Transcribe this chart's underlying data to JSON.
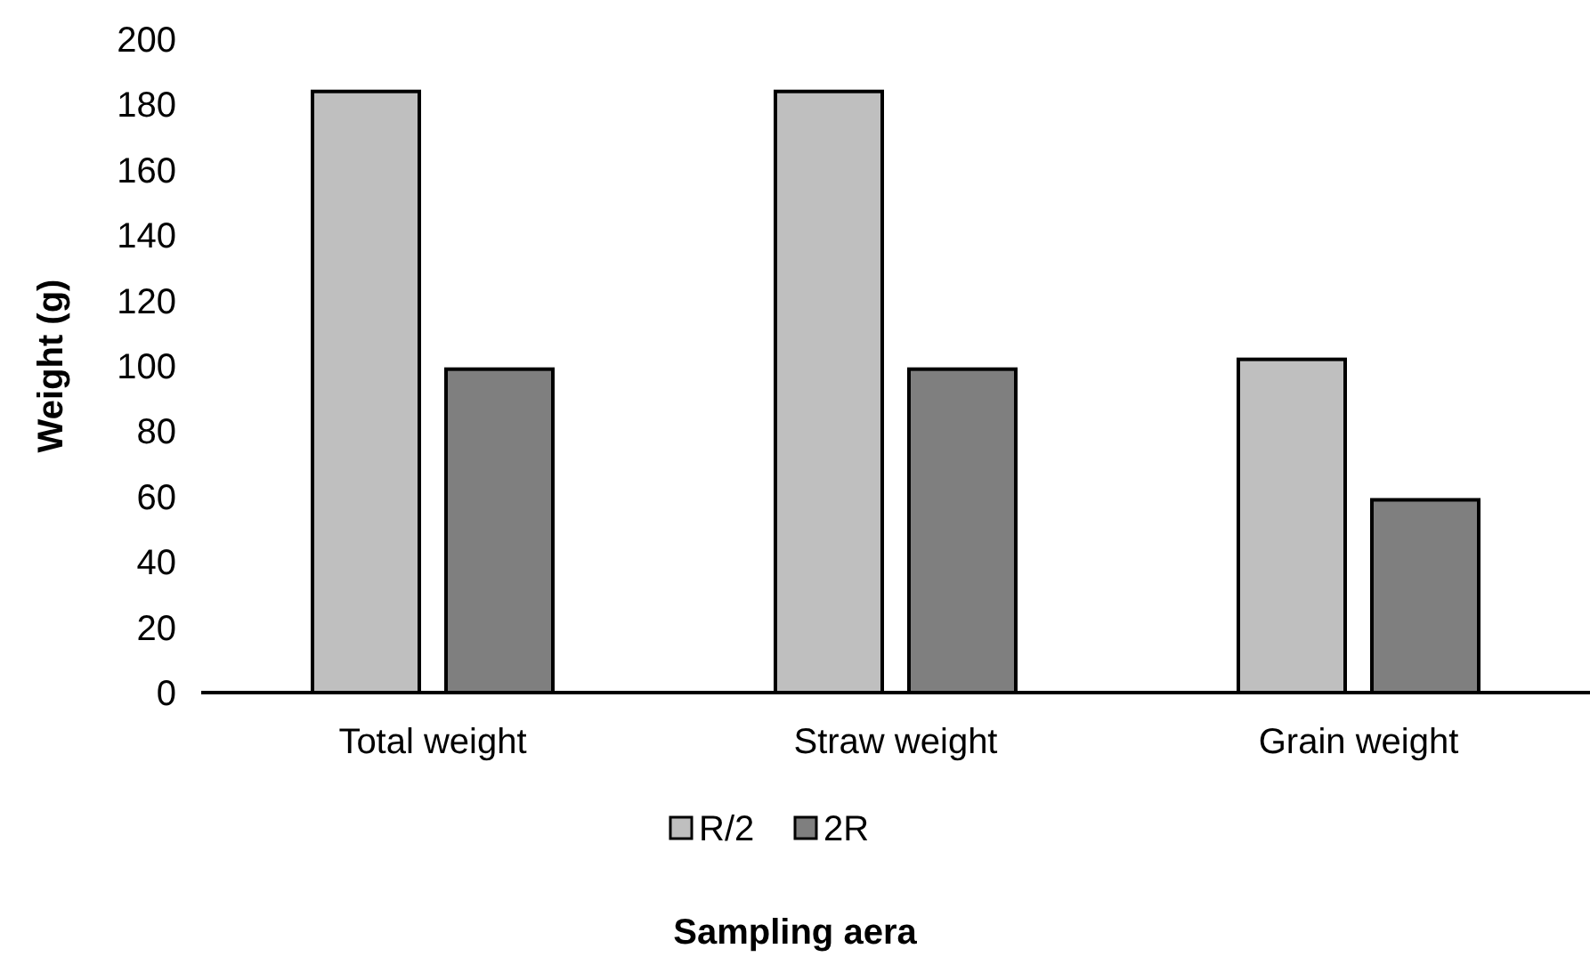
{
  "chart_data": {
    "type": "bar",
    "xlabel": "Sampling aera",
    "ylabel": "Weight (g)",
    "categories": [
      "Total weight",
      "Straw weight",
      "Grain weight"
    ],
    "series": [
      {
        "name": "R/2",
        "color": "#bfbfbf",
        "values": [
          184,
          184,
          102
        ]
      },
      {
        "name": "2R",
        "color": "#7f7f7f",
        "values": [
          99,
          99,
          59
        ]
      }
    ],
    "ylim": [
      0,
      200
    ],
    "yticks": [
      0,
      20,
      40,
      60,
      80,
      100,
      120,
      140,
      160,
      180,
      200
    ],
    "grid": false,
    "legend": "bottom"
  }
}
